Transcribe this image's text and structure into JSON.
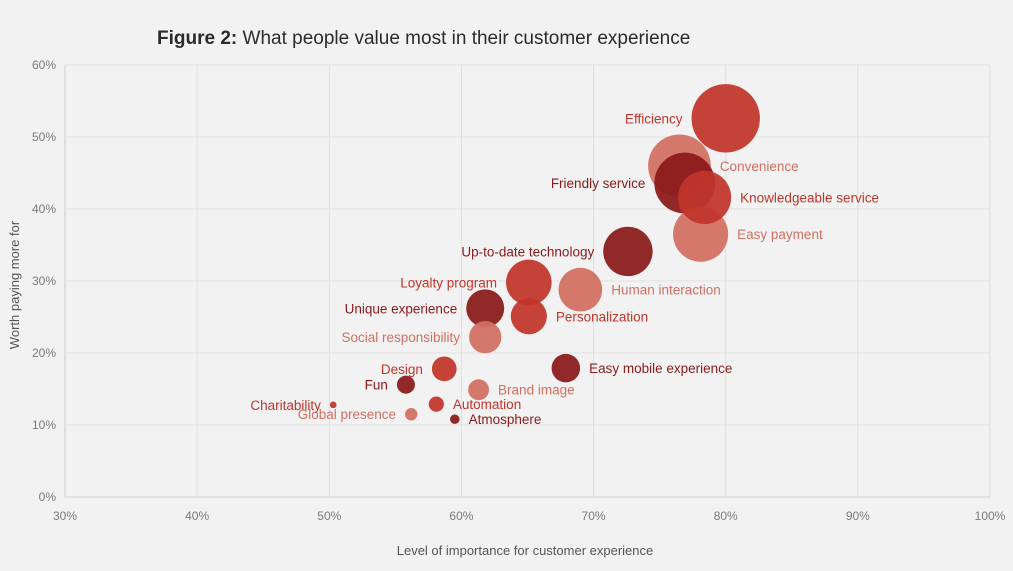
{
  "chart_data": {
    "type": "scatter",
    "title_prefix": "Figure 2:",
    "title": "What people value most in their customer experience",
    "xlabel": "Level of importance for customer experience",
    "ylabel": "Worth paying more for",
    "xlim": [
      30,
      100
    ],
    "ylim": [
      0,
      60
    ],
    "x_ticks": [
      "30%",
      "40%",
      "50%",
      "60%",
      "70%",
      "80%",
      "90%",
      "100%"
    ],
    "y_ticks": [
      "0%",
      "10%",
      "20%",
      "30%",
      "40%",
      "50%",
      "60%"
    ],
    "grid": true,
    "colors": {
      "dark": "#8b1a1a",
      "medium": "#c1352a",
      "light": "#d36f62"
    },
    "points": [
      {
        "label": "Efficiency",
        "x": 80.0,
        "y": 52.6,
        "size": 36,
        "color": "medium",
        "label_side": "left"
      },
      {
        "label": "Convenience",
        "x": 76.5,
        "y": 46.0,
        "size": 33,
        "color": "light",
        "label_side": "right"
      },
      {
        "label": "Friendly service",
        "x": 76.9,
        "y": 43.6,
        "size": 32,
        "color": "dark",
        "label_side": "left"
      },
      {
        "label": "Knowledgeable service",
        "x": 78.4,
        "y": 41.6,
        "size": 28,
        "color": "medium",
        "label_side": "right"
      },
      {
        "label": "Easy payment",
        "x": 78.1,
        "y": 36.5,
        "size": 29,
        "color": "light",
        "label_side": "right"
      },
      {
        "label": "Up-to-date technology",
        "x": 72.6,
        "y": 34.1,
        "size": 26,
        "color": "dark",
        "label_side": "left"
      },
      {
        "label": "Human interaction",
        "x": 69.0,
        "y": 28.8,
        "size": 23,
        "color": "light",
        "label_side": "right"
      },
      {
        "label": "Loyalty program",
        "x": 65.1,
        "y": 29.8,
        "size": 24,
        "color": "medium",
        "label_side": "left"
      },
      {
        "label": "Personalization",
        "x": 65.1,
        "y": 25.1,
        "size": 19,
        "color": "medium",
        "label_side": "right"
      },
      {
        "label": "Unique experience",
        "x": 61.8,
        "y": 26.2,
        "size": 20,
        "color": "dark",
        "label_side": "left"
      },
      {
        "label": "Social responsibility",
        "x": 61.8,
        "y": 22.2,
        "size": 17,
        "color": "light",
        "label_side": "left"
      },
      {
        "label": "Design",
        "x": 58.7,
        "y": 17.8,
        "size": 13,
        "color": "medium",
        "label_side": "left"
      },
      {
        "label": "Easy mobile experience",
        "x": 67.9,
        "y": 17.9,
        "size": 15,
        "color": "dark",
        "label_side": "right"
      },
      {
        "label": "Brand image",
        "x": 61.3,
        "y": 14.9,
        "size": 11,
        "color": "light",
        "label_side": "right"
      },
      {
        "label": "Fun",
        "x": 55.8,
        "y": 15.6,
        "size": 9.5,
        "color": "dark",
        "label_side": "left"
      },
      {
        "label": "Automation",
        "x": 58.1,
        "y": 12.9,
        "size": 8,
        "color": "medium",
        "label_side": "right"
      },
      {
        "label": "Charitability",
        "x": 50.3,
        "y": 12.8,
        "size": 3.5,
        "color": "medium",
        "label_side": "left"
      },
      {
        "label": "Global presence",
        "x": 56.2,
        "y": 11.5,
        "size": 6.5,
        "color": "light",
        "label_side": "left"
      },
      {
        "label": "Atmosphere",
        "x": 59.5,
        "y": 10.8,
        "size": 5,
        "color": "dark",
        "label_side": "right"
      }
    ]
  }
}
